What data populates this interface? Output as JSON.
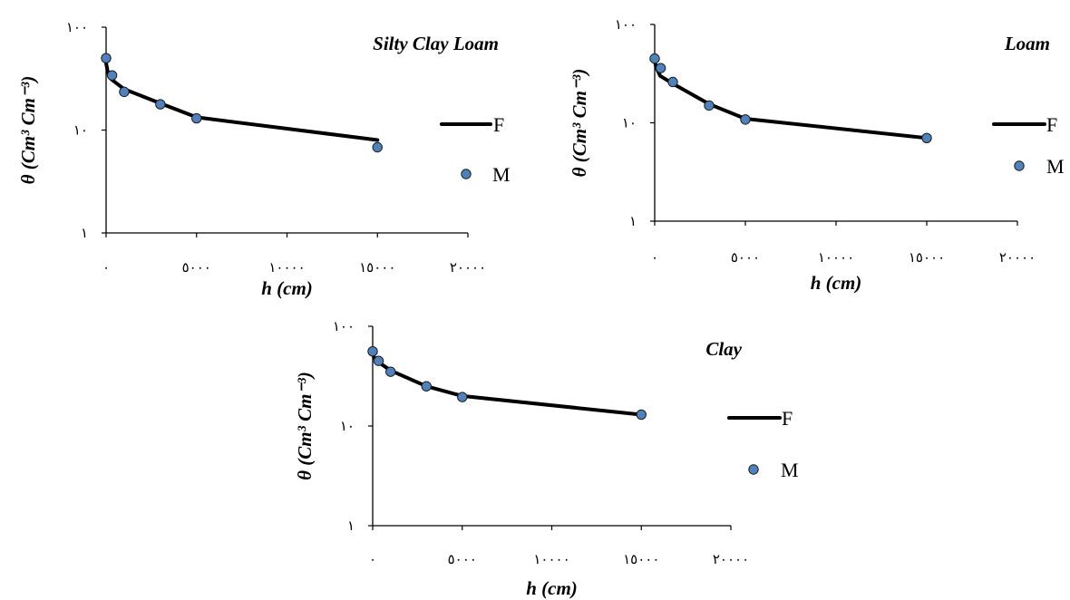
{
  "chart_data": [
    {
      "type": "line",
      "title": "Silty Clay Loam",
      "xlabel": "h (cm)",
      "ylabel": "θ (Cm³ Cm⁻³)",
      "xlim": [
        0,
        20000
      ],
      "ylim": [
        1,
        100
      ],
      "yscale": "log",
      "xticks": [
        0,
        5000,
        10000,
        15000,
        20000
      ],
      "xtick_labels": [
        "٠",
        "٥٠٠٠",
        "١٠٠٠٠",
        "١٥٠٠٠",
        "٢٠٠٠٠"
      ],
      "yticks": [
        1,
        10,
        100
      ],
      "ytick_labels": [
        "١",
        "١٠",
        "١٠٠"
      ],
      "legend_position": "right",
      "grid": false,
      "series": [
        {
          "name": "F",
          "kind": "line",
          "color": "#000000",
          "x": [
            0,
            100,
            300,
            1000,
            3000,
            5000,
            15000
          ],
          "y": [
            45,
            36,
            31,
            25,
            18.2,
            13.3,
            8
          ]
        },
        {
          "name": "M",
          "kind": "scatter",
          "color": "#4F81BD",
          "x": [
            0,
            330,
            1000,
            3000,
            5000,
            15000
          ],
          "y": [
            50,
            34,
            23.5,
            17.8,
            13,
            6.8
          ]
        }
      ]
    },
    {
      "type": "line",
      "title": "Loam",
      "xlabel": "h (cm)",
      "ylabel": "θ (Cm³ Cm⁻³)",
      "xlim": [
        0,
        20000
      ],
      "ylim": [
        1,
        100
      ],
      "yscale": "log",
      "xticks": [
        0,
        5000,
        10000,
        15000,
        20000
      ],
      "xtick_labels": [
        "٠",
        "٥٠٠٠",
        "١٠٠٠٠",
        "١٥٠٠٠",
        "٢٠٠٠٠"
      ],
      "yticks": [
        1,
        10,
        100
      ],
      "ytick_labels": [
        "١",
        "١٠",
        "١٠٠"
      ],
      "legend_position": "right",
      "grid": false,
      "series": [
        {
          "name": "F",
          "kind": "line",
          "color": "#000000",
          "x": [
            0,
            100,
            300,
            1000,
            3000,
            5000,
            15000
          ],
          "y": [
            42,
            36,
            30,
            25,
            15.5,
            11,
            7
          ]
        },
        {
          "name": "M",
          "kind": "scatter",
          "color": "#4F81BD",
          "x": [
            0,
            330,
            1000,
            3000,
            5000,
            15000
          ],
          "y": [
            45,
            36,
            26,
            15,
            10.8,
            7
          ]
        }
      ]
    },
    {
      "type": "line",
      "title": "Clay",
      "xlabel": "h (cm)",
      "ylabel": "θ (Cm³ Cm⁻³)",
      "xlim": [
        0,
        20000
      ],
      "ylim": [
        1,
        100
      ],
      "yscale": "log",
      "xticks": [
        0,
        5000,
        10000,
        15000,
        20000
      ],
      "xtick_labels": [
        "٠",
        "٥٠٠٠",
        "١٠٠٠٠",
        "١٥٠٠٠",
        "٢٠٠٠٠"
      ],
      "yticks": [
        1,
        10,
        100
      ],
      "ytick_labels": [
        "١",
        "١٠",
        "١٠٠"
      ],
      "legend_position": "right",
      "grid": false,
      "series": [
        {
          "name": "F",
          "kind": "line",
          "color": "#000000",
          "x": [
            0,
            100,
            300,
            1000,
            3000,
            5000,
            15000
          ],
          "y": [
            53,
            48,
            44,
            36,
            25,
            20,
            13
          ]
        },
        {
          "name": "M",
          "kind": "scatter",
          "color": "#4F81BD",
          "x": [
            0,
            330,
            1000,
            3000,
            5000,
            15000
          ],
          "y": [
            56,
            45,
            35,
            25,
            19.5,
            13
          ]
        }
      ]
    }
  ]
}
